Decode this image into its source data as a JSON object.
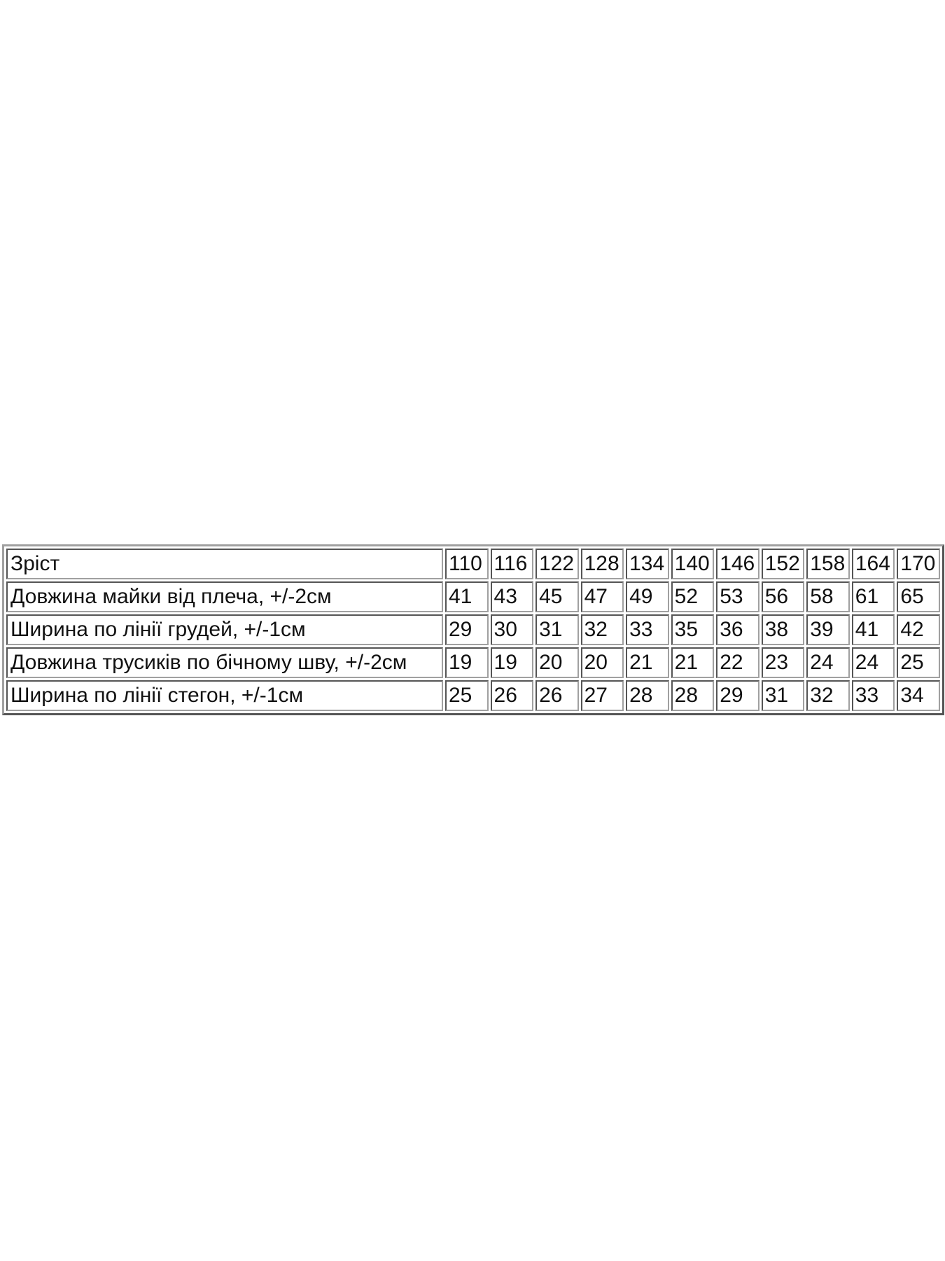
{
  "size_table": {
    "rows": [
      {
        "label": "Зріст",
        "values": [
          "110",
          "116",
          "122",
          "128",
          "134",
          "140",
          "146",
          "152",
          "158",
          "164",
          "170"
        ]
      },
      {
        "label": "Довжина майки від плеча, +/-2см",
        "values": [
          "41",
          "43",
          "45",
          "47",
          "49",
          "52",
          "53",
          "56",
          "58",
          "61",
          "65"
        ]
      },
      {
        "label": "Ширина по лінії грудей, +/-1см",
        "values": [
          "29",
          "30",
          "31",
          "32",
          "33",
          "35",
          "36",
          "38",
          "39",
          "41",
          "42"
        ]
      },
      {
        "label": "Довжина трусиків по бічному шву, +/-2см",
        "values": [
          "19",
          "19",
          "20",
          "20",
          "21",
          "21",
          "22",
          "23",
          "24",
          "24",
          "25"
        ]
      },
      {
        "label": "Ширина по лінії стегон, +/-1см",
        "values": [
          "25",
          "26",
          "26",
          "27",
          "28",
          "28",
          "29",
          "31",
          "32",
          "33",
          "34"
        ]
      }
    ]
  }
}
